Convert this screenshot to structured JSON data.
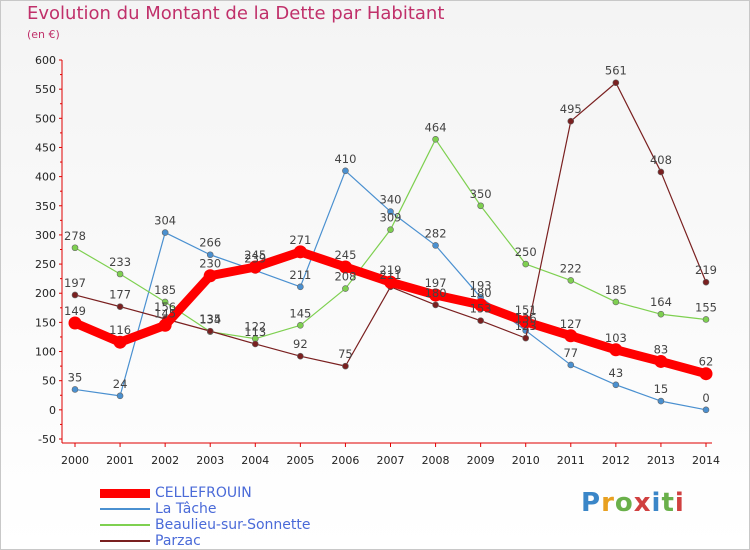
{
  "title": "Evolution du Montant de la Dette par Habitant",
  "subtitle": "(en €)",
  "logo": "Proxiti",
  "chart_data": {
    "type": "line",
    "x": [
      "2000",
      "2001",
      "2002",
      "2003",
      "2004",
      "2005",
      "2006",
      "2007",
      "2008",
      "2009",
      "2010",
      "2011",
      "2012",
      "2013",
      "2014"
    ],
    "ylim": [
      -50,
      600
    ],
    "yticks": [
      -50,
      0,
      50,
      100,
      150,
      200,
      250,
      300,
      350,
      400,
      450,
      500,
      550,
      600
    ],
    "grid": false,
    "legend_position": "bottom-left",
    "series": [
      {
        "name": "CELLEFROUIN",
        "color": "#ff0000",
        "emphasis": true,
        "values": [
          149,
          116,
          145,
          230,
          245,
          271,
          245,
          219,
          197,
          180,
          151,
          127,
          103,
          83,
          62
        ]
      },
      {
        "name": "La Tâche",
        "color": "#4a90d0",
        "values": [
          35,
          24,
          304,
          266,
          239,
          211,
          410,
          340,
          282,
          193,
          136,
          77,
          43,
          15,
          0
        ]
      },
      {
        "name": "Beaulieu-sur-Sonnette",
        "color": "#7ed050",
        "values": [
          278,
          233,
          185,
          134,
          122,
          145,
          208,
          309,
          464,
          350,
          250,
          222,
          185,
          164,
          155
        ]
      },
      {
        "name": "Parzac",
        "color": "#7a2020",
        "values": [
          197,
          177,
          156,
          135,
          113,
          92,
          75,
          211,
          180,
          153,
          123,
          495,
          561,
          408,
          219
        ]
      }
    ]
  }
}
